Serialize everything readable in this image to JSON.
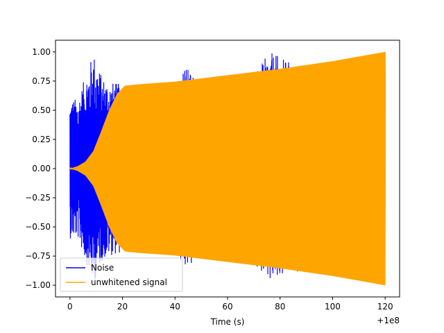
{
  "chart_data": {
    "type": "line",
    "title": "",
    "xlabel": "Time (s)",
    "ylabel": "",
    "x_offset_label": "+1e8",
    "xlim": [
      -5.5,
      125.5
    ],
    "ylim": [
      -1.1,
      1.1
    ],
    "xticks": [
      {
        "value": 0,
        "label": "0"
      },
      {
        "value": 20,
        "label": "20"
      },
      {
        "value": 40,
        "label": "40"
      },
      {
        "value": 60,
        "label": "60"
      },
      {
        "value": 80,
        "label": "80"
      },
      {
        "value": 100,
        "label": "100"
      },
      {
        "value": 120,
        "label": "120"
      }
    ],
    "yticks": [
      {
        "value": -1.0,
        "label": "−1.00"
      },
      {
        "value": -0.75,
        "label": "−0.75"
      },
      {
        "value": -0.5,
        "label": "−0.50"
      },
      {
        "value": -0.25,
        "label": "−0.25"
      },
      {
        "value": 0.0,
        "label": "0.00"
      },
      {
        "value": 0.25,
        "label": "0.25"
      },
      {
        "value": 0.5,
        "label": "0.50"
      },
      {
        "value": 0.75,
        "label": "0.75"
      },
      {
        "value": 1.0,
        "label": "1.00"
      }
    ],
    "grid": false,
    "legend_position": "lower-left",
    "series": [
      {
        "name": "Noise",
        "color": "#0000ff",
        "x_range": [
          0,
          120
        ],
        "amplitude_envelope": [
          [
            0,
            0.6
          ],
          [
            3,
            0.6
          ],
          [
            9,
            1.0
          ],
          [
            12,
            0.8
          ],
          [
            15,
            0.75
          ],
          [
            20,
            0.72
          ],
          [
            30,
            0.7
          ],
          [
            40,
            0.72
          ],
          [
            43,
            0.9
          ],
          [
            50,
            0.75
          ],
          [
            60,
            0.8
          ],
          [
            70,
            0.8
          ],
          [
            76,
            1.0
          ],
          [
            90,
            0.85
          ],
          [
            120,
            0.9
          ]
        ]
      },
      {
        "name": "unwhitened signal",
        "color": "#ffa500",
        "x_range": [
          0,
          120
        ],
        "amplitude_envelope": [
          [
            0,
            0.0
          ],
          [
            3,
            0.02
          ],
          [
            6,
            0.06
          ],
          [
            9,
            0.15
          ],
          [
            12,
            0.32
          ],
          [
            15,
            0.5
          ],
          [
            18,
            0.64
          ],
          [
            21,
            0.71
          ],
          [
            25,
            0.72
          ],
          [
            40,
            0.745
          ],
          [
            60,
            0.8
          ],
          [
            80,
            0.855
          ],
          [
            100,
            0.92
          ],
          [
            120,
            1.0
          ]
        ]
      }
    ]
  }
}
